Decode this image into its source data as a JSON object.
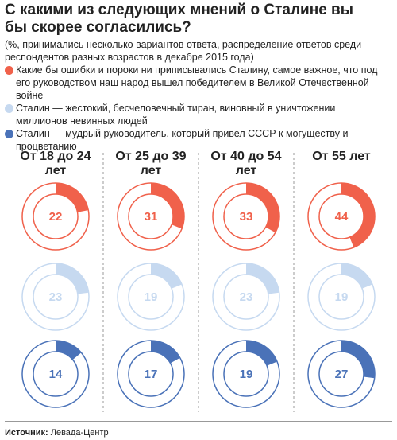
{
  "chart_data": {
    "type": "donut",
    "title": "С какими из следующих мнений о Сталине вы бы скорее согласились?",
    "subtitle": "(%, принимались несколько вариантов ответа, распределение ответов среди респондентов разных возрастов в декабре 2015 года)",
    "categories": [
      "От 18 до 24 лет",
      "От 25 до 39 лет",
      "От 40 до 54 лет",
      "От 55 лет"
    ],
    "series": [
      {
        "name": "Какие бы ошибки и пороки ни приписывались Сталину, самое важное, что под его руководством наш народ вышел победителем в Великой Отечественной войне",
        "color": "#f0614b",
        "values": [
          22,
          31,
          33,
          44
        ]
      },
      {
        "name": "Сталин — жестокий, бесчеловечный тиран, виновный в уничтожении миллионов невинных людей",
        "color": "#c6d9f0",
        "values": [
          23,
          19,
          23,
          19
        ]
      },
      {
        "name": "Сталин — мудрый руководитель, который привел СССР к могуществу и процветанию",
        "color": "#4a72b8",
        "values": [
          14,
          17,
          19,
          27
        ]
      }
    ],
    "source_label": "Источник:",
    "source": "Левада-Центр"
  }
}
